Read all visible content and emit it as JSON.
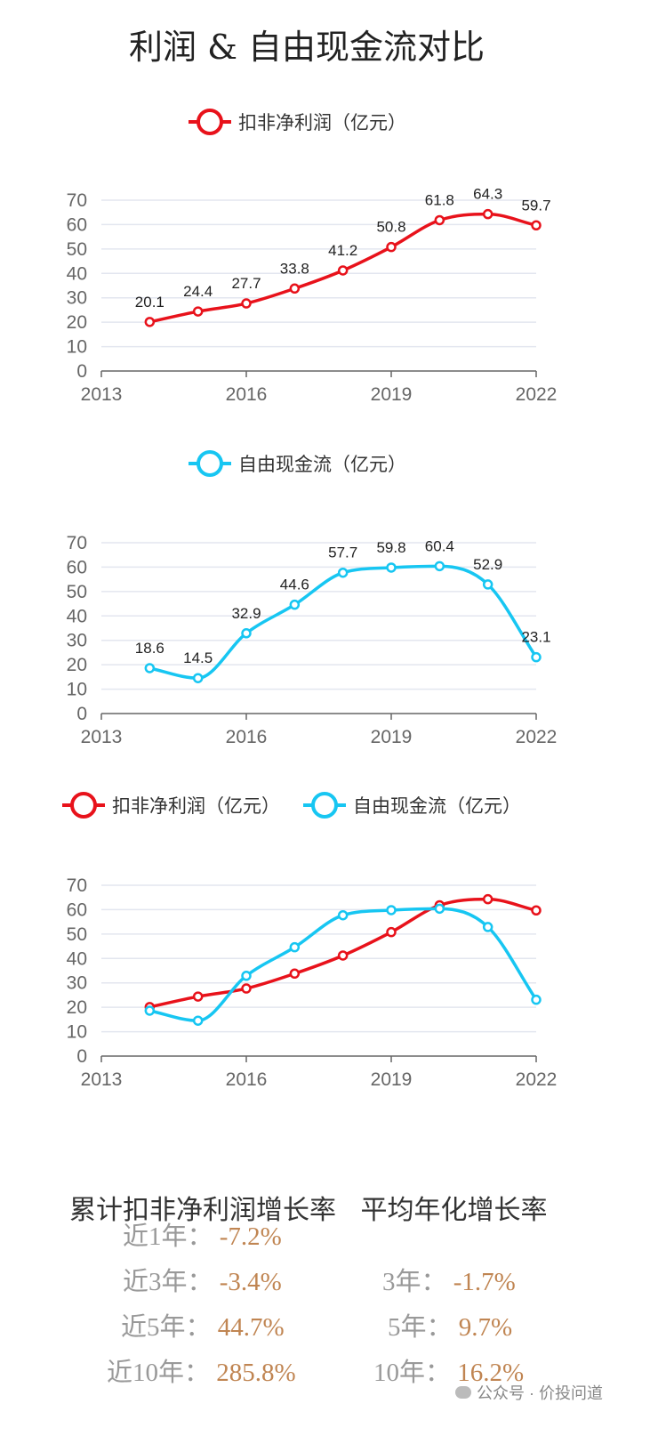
{
  "title": "利润 & 自由现金流对比",
  "colors": {
    "profit": "#e8121b",
    "fcf": "#17c6f2"
  },
  "legend": {
    "profit": "扣非净利润（亿元）",
    "fcf": "自由现金流（亿元）"
  },
  "chart_data": [
    {
      "type": "line",
      "x": [
        2014,
        2015,
        2016,
        2017,
        2018,
        2019,
        2020,
        2021,
        2022
      ],
      "xticks": [
        "2013",
        "2016",
        "2019",
        "2022"
      ],
      "xlim": [
        2013,
        2022
      ],
      "ylim": [
        0,
        70
      ],
      "yticks": [
        "0",
        "10",
        "20",
        "30",
        "40",
        "50",
        "60",
        "70"
      ],
      "series": [
        {
          "name": "扣非净利润（亿元）",
          "color": "#e8121b",
          "values": [
            20.1,
            24.4,
            27.7,
            33.8,
            41.2,
            50.8,
            61.8,
            64.3,
            59.7
          ],
          "labels": [
            "20.1",
            "24.4",
            "27.7",
            "33.8",
            "41.2",
            "50.8",
            "61.8",
            "64.3",
            "59.7"
          ]
        }
      ]
    },
    {
      "type": "line",
      "x": [
        2014,
        2015,
        2016,
        2017,
        2018,
        2019,
        2020,
        2021,
        2022
      ],
      "xticks": [
        "2013",
        "2016",
        "2019",
        "2022"
      ],
      "xlim": [
        2013,
        2022
      ],
      "ylim": [
        0,
        70
      ],
      "yticks": [
        "0",
        "10",
        "20",
        "30",
        "40",
        "50",
        "60",
        "70"
      ],
      "series": [
        {
          "name": "自由现金流（亿元）",
          "color": "#17c6f2",
          "values": [
            18.6,
            14.5,
            32.9,
            44.6,
            57.7,
            59.8,
            60.4,
            52.9,
            23.1
          ],
          "labels": [
            "18.6",
            "14.5",
            "32.9",
            "44.6",
            "57.7",
            "59.8",
            "60.4",
            "52.9",
            "23.1"
          ]
        }
      ]
    },
    {
      "type": "line",
      "x": [
        2014,
        2015,
        2016,
        2017,
        2018,
        2019,
        2020,
        2021,
        2022
      ],
      "xticks": [
        "2013",
        "2016",
        "2019",
        "2022"
      ],
      "xlim": [
        2013,
        2022
      ],
      "ylim": [
        0,
        70
      ],
      "yticks": [
        "0",
        "10",
        "20",
        "30",
        "40",
        "50",
        "60",
        "70"
      ],
      "series": [
        {
          "name": "扣非净利润（亿元）",
          "color": "#e8121b",
          "values": [
            20.1,
            24.4,
            27.7,
            33.8,
            41.2,
            50.8,
            61.8,
            64.3,
            59.7
          ]
        },
        {
          "name": "自由现金流（亿元）",
          "color": "#17c6f2",
          "values": [
            18.6,
            14.5,
            32.9,
            44.6,
            57.7,
            59.8,
            60.4,
            52.9,
            23.1
          ]
        }
      ]
    }
  ],
  "stats": {
    "heading_cumulative": "累计扣非净利润增长率",
    "heading_annualized": "平均年化增长率",
    "cumulative": [
      {
        "label": "近1年：",
        "value": "-7.2%"
      },
      {
        "label": "近3年：",
        "value": "-3.4%"
      },
      {
        "label": "近5年：",
        "value": "44.7%"
      },
      {
        "label": "近10年：",
        "value": "285.8%"
      }
    ],
    "annualized": [
      {
        "label": "3年：",
        "value": "-1.7%"
      },
      {
        "label": "5年：",
        "value": "9.7%"
      },
      {
        "label": "10年：",
        "value": "16.2%"
      }
    ]
  },
  "watermark": "公众号 · 价投问道"
}
